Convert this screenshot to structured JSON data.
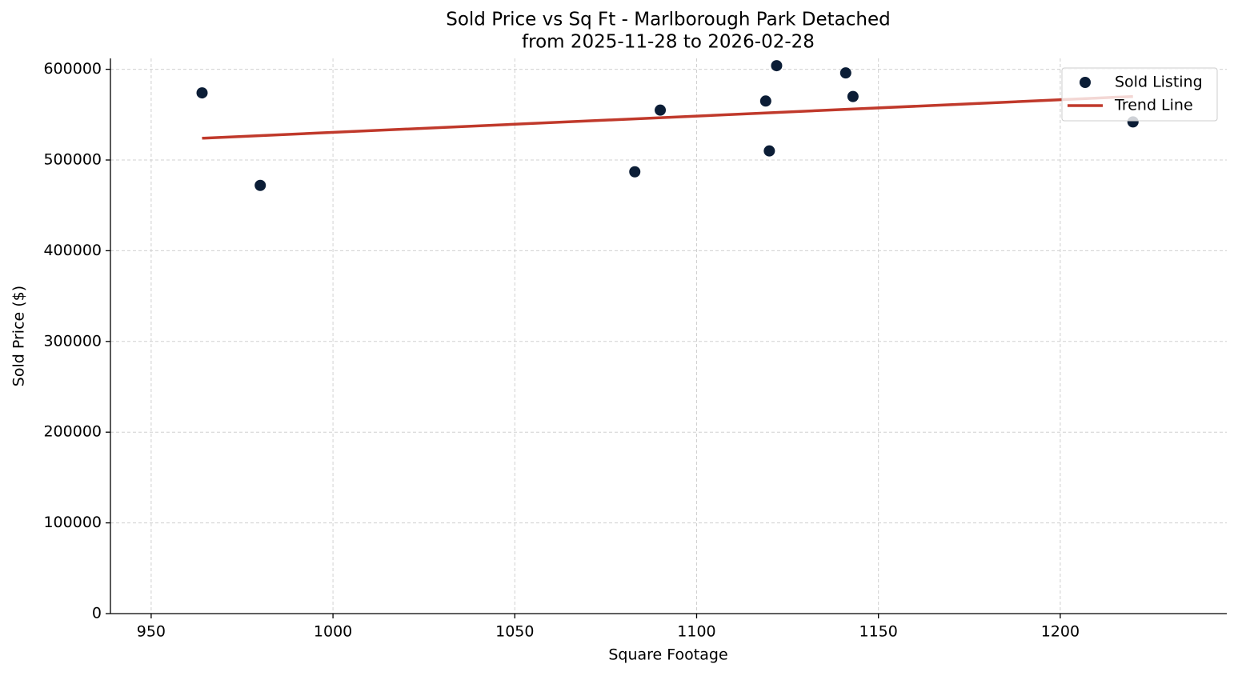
{
  "chart_data": {
    "type": "scatter",
    "title": "Sold Price vs Sq Ft - Marlborough Park Detached",
    "subtitle": "from 2025-11-28 to 2026-02-28",
    "x_label": "Square Footage",
    "y_label": "Sold Price ($)",
    "xlim": [
      938.8,
      1245.8
    ],
    "ylim": [
      0,
      612000
    ],
    "xticks": [
      950,
      1000,
      1050,
      1100,
      1150,
      1200
    ],
    "yticks": [
      0,
      100000,
      200000,
      300000,
      400000,
      500000,
      600000
    ],
    "grid": true,
    "legend": "upper right",
    "series": [
      {
        "name": "Sold Listing",
        "type": "scatter",
        "color": "#0b1d36",
        "x": [
          964,
          980,
          1083,
          1090,
          1119,
          1120,
          1122,
          1141,
          1143,
          1220
        ],
        "values": [
          574000,
          472000,
          487000,
          555000,
          565000,
          510000,
          604000,
          596000,
          570000,
          542000
        ]
      },
      {
        "name": "Trend Line",
        "type": "line",
        "color": "#c0392b",
        "x": [
          964,
          1220
        ],
        "values": [
          524000,
          570000
        ]
      }
    ]
  }
}
